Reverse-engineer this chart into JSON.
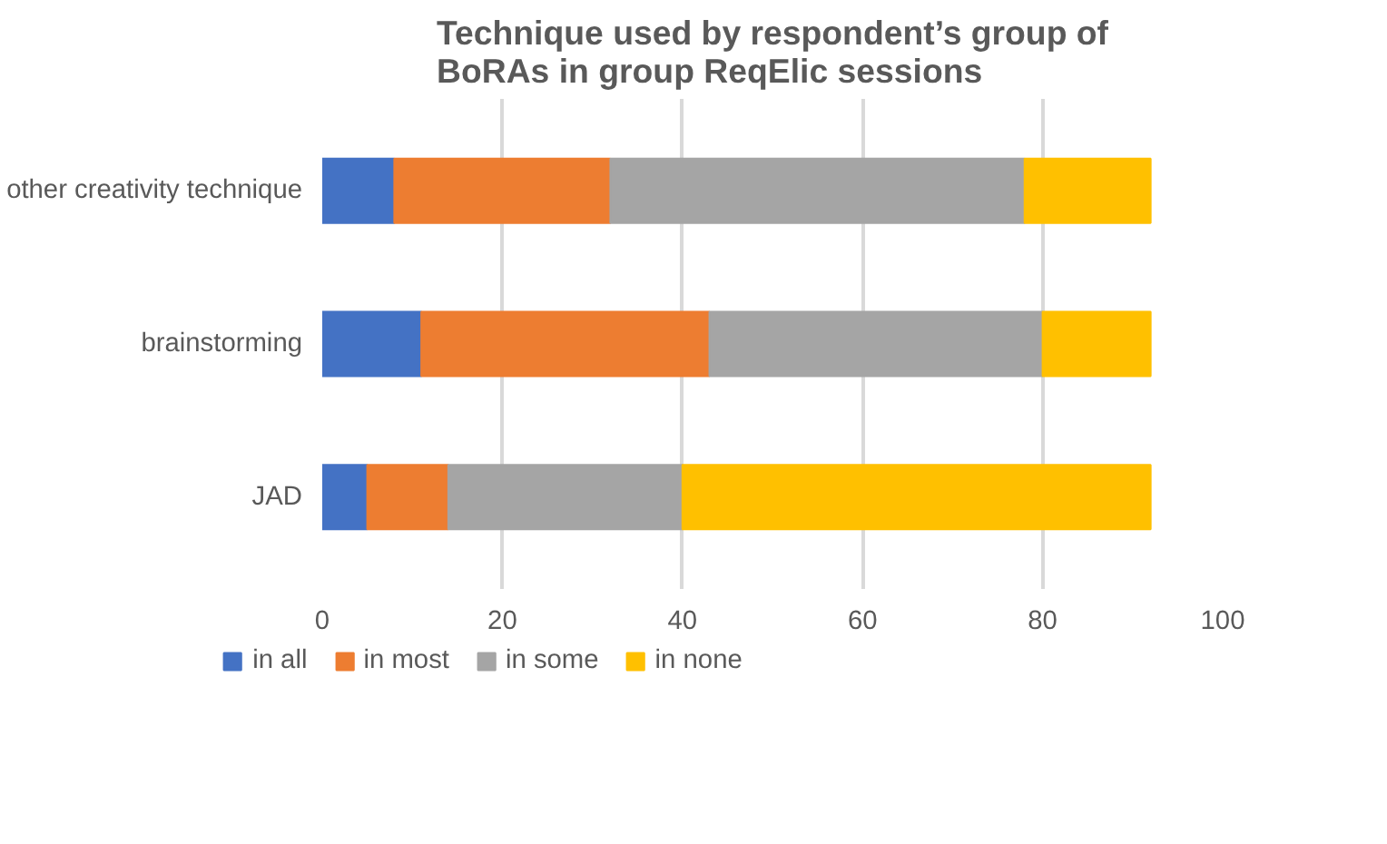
{
  "chart_data": {
    "type": "bar",
    "orientation": "horizontal",
    "stacked": true,
    "title": "Technique used by respondent’s group of BoRAs in group ReqElic sessions",
    "categories": [
      "other creativity technique",
      "brainstorming",
      "JAD"
    ],
    "series": [
      {
        "name": "in all",
        "color": "#4472c4",
        "values": [
          8,
          11,
          5
        ]
      },
      {
        "name": "in most",
        "color": "#ed7d31",
        "values": [
          24,
          32,
          9
        ]
      },
      {
        "name": "in some",
        "color": "#a5a5a5",
        "values": [
          46,
          37,
          26
        ]
      },
      {
        "name": "in none",
        "color": "#ffc000",
        "values": [
          14,
          12,
          52
        ]
      }
    ],
    "xlim": [
      0,
      100
    ],
    "xticks": [
      0,
      20,
      40,
      60,
      80,
      100
    ],
    "grid": "x",
    "legend": "bottom"
  }
}
